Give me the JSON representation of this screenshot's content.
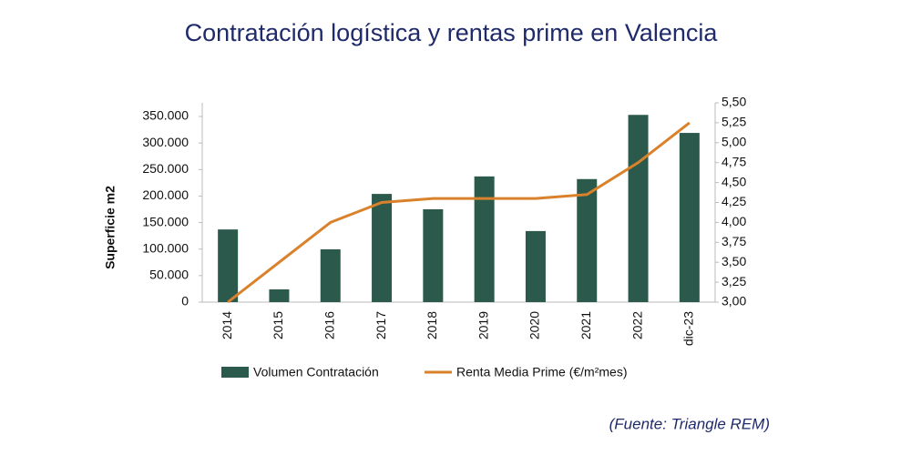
{
  "chart_data": {
    "type": "bar-line",
    "title": "Contratación logística y rentas prime en Valencia",
    "ylabel": "Superficie m2",
    "source": "(Fuente: Triangle REM)",
    "categories": [
      "2014",
      "2015",
      "2016",
      "2017",
      "2018",
      "2019",
      "2020",
      "2021",
      "2022",
      "dic-23"
    ],
    "series": [
      {
        "name": "Volumen Contratación",
        "type": "bar",
        "color": "#2b5a4c",
        "values": [
          137000,
          24000,
          99500,
          204000,
          175000,
          237000,
          134000,
          232000,
          353000,
          319000
        ]
      },
      {
        "name": "Renta Media Prime (€/m²mes)",
        "type": "line",
        "axis": "y2",
        "color": "#d9822b",
        "values": [
          3.0,
          3.5,
          4.0,
          4.25,
          4.3,
          4.3,
          4.3,
          4.35,
          4.75,
          5.25
        ]
      }
    ],
    "ylim": [
      0,
      375000
    ],
    "yticks": [
      0,
      {
        "value": 50000,
        "label": "50.000"
      },
      {
        "value": 100000,
        "label": "100.000"
      },
      {
        "value": 150000,
        "label": "150.000"
      },
      {
        "value": 200000,
        "label": "200.000"
      },
      {
        "value": 250000,
        "label": "250.000"
      },
      {
        "value": 300000,
        "label": "300.000"
      },
      {
        "value": 350000,
        "label": "350.000"
      }
    ],
    "y2lim": [
      3.0,
      5.5
    ],
    "y2ticks": [
      {
        "value": 3.0,
        "label": "3,00"
      },
      {
        "value": 3.25,
        "label": "3,25"
      },
      {
        "value": 3.5,
        "label": "3,50"
      },
      {
        "value": 3.75,
        "label": "3,75"
      },
      {
        "value": 4.0,
        "label": "4,00"
      },
      {
        "value": 4.25,
        "label": "4,25"
      },
      {
        "value": 4.5,
        "label": "4,50"
      },
      {
        "value": 4.75,
        "label": "4,75"
      },
      {
        "value": 5.0,
        "label": "5,00"
      },
      {
        "value": 5.25,
        "label": "5,25"
      },
      {
        "value": 5.5,
        "label": "5,50"
      }
    ],
    "grid": false
  }
}
